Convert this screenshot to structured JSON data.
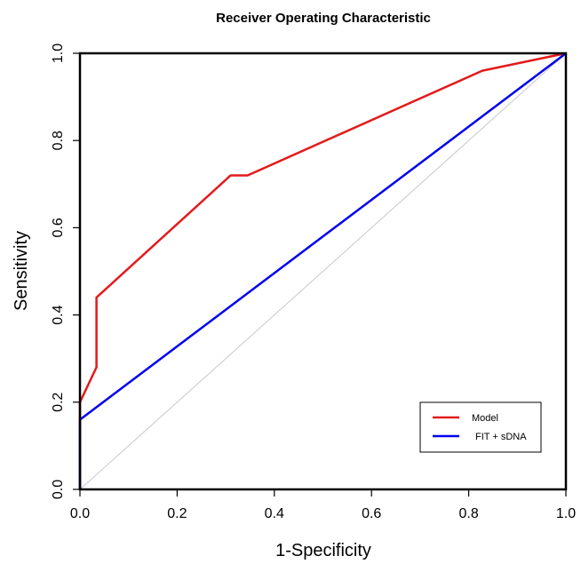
{
  "chart_data": {
    "type": "line",
    "title": "Receiver Operating Characteristic",
    "xlabel": "1-Specificity",
    "ylabel": "Sensitivity",
    "xlim": [
      0,
      1
    ],
    "ylim": [
      0,
      1
    ],
    "xticks": [
      "0.0",
      "0.2",
      "0.4",
      "0.6",
      "0.8",
      "1.0"
    ],
    "yticks": [
      "0.0",
      "0.2",
      "0.4",
      "0.6",
      "0.8",
      "1.0"
    ],
    "grid": false,
    "legend_position": "bottom-right",
    "reference_line": {
      "color": "#c8c8c8",
      "x": [
        0,
        1
      ],
      "y": [
        0,
        1
      ]
    },
    "series": [
      {
        "name": "Model",
        "color": "#e31a1c",
        "x": [
          0,
          0,
          0.034,
          0.034,
          0.31,
          0.345,
          0.828,
          1.0
        ],
        "y": [
          0,
          0.2,
          0.28,
          0.44,
          0.72,
          0.72,
          0.96,
          1.0
        ]
      },
      {
        "name": "FIT + sDNA",
        "color": "#0000ee",
        "x": [
          0,
          0,
          1.0
        ],
        "y": [
          0,
          0.16,
          1.0
        ]
      }
    ]
  }
}
